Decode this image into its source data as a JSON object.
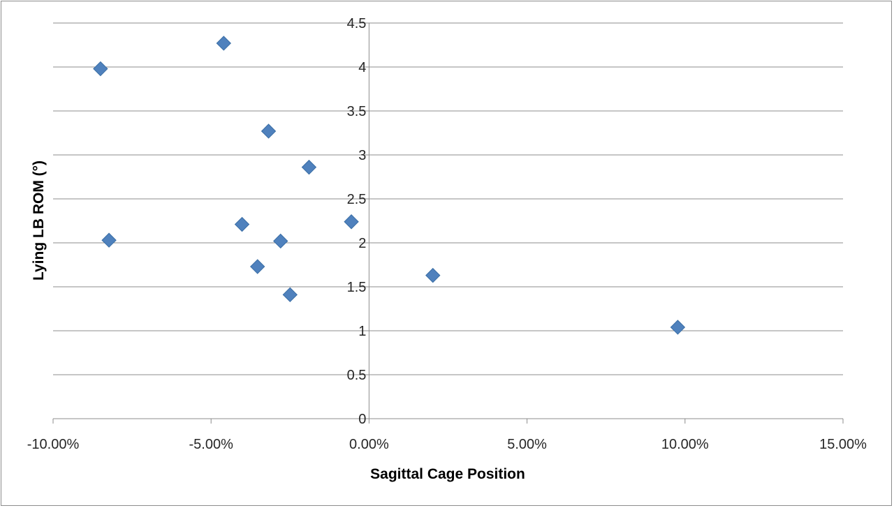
{
  "chart_data": {
    "type": "scatter",
    "title": "",
    "xlabel": "Sagittal Cage Position",
    "ylabel": "Lying LB ROM (°)",
    "xlim": [
      -0.1,
      0.15
    ],
    "ylim": [
      0,
      4.5
    ],
    "x_ticks": [
      -0.1,
      -0.05,
      0.0,
      0.05,
      0.1,
      0.15
    ],
    "x_tick_labels": [
      "-10.00%",
      "-5.00%",
      "0.00%",
      "5.00%",
      "10.00%",
      "15.00%"
    ],
    "y_ticks": [
      0,
      0.5,
      1,
      1.5,
      2,
      2.5,
      3,
      3.5,
      4,
      4.5
    ],
    "y_tick_labels": [
      "0",
      "0.5",
      "1",
      "1.5",
      "2",
      "2.5",
      "3",
      "3.5",
      "4",
      "4.5"
    ],
    "grid": "horizontal",
    "legend": "none",
    "marker": "diamond",
    "marker_color": "#4f81bd",
    "points": [
      {
        "x": -0.085,
        "y": 3.98
      },
      {
        "x": -0.046,
        "y": 4.27
      },
      {
        "x": -0.0318,
        "y": 3.27
      },
      {
        "x": -0.019,
        "y": 2.86
      },
      {
        "x": -0.0823,
        "y": 2.03
      },
      {
        "x": -0.0402,
        "y": 2.21
      },
      {
        "x": -0.0056,
        "y": 2.24
      },
      {
        "x": -0.028,
        "y": 2.02
      },
      {
        "x": -0.0353,
        "y": 1.73
      },
      {
        "x": -0.025,
        "y": 1.41
      },
      {
        "x": 0.0202,
        "y": 1.63
      },
      {
        "x": 0.0977,
        "y": 1.04
      }
    ]
  }
}
